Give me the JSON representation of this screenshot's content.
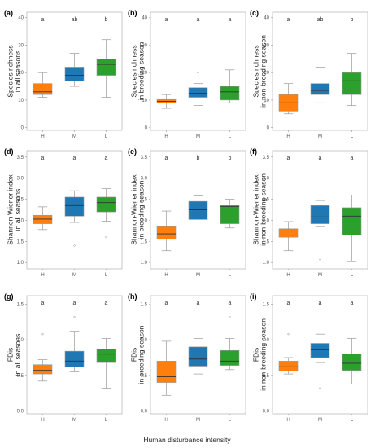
{
  "figure": {
    "x_title": "Human disturbance intensity",
    "colors": {
      "H": "#ff7f0e",
      "M": "#1f77b4",
      "L": "#2ca02c",
      "outline": "#999999",
      "median": "#333333"
    }
  },
  "chart_data": [
    {
      "type": "box",
      "panel": "(a)",
      "ylabel": [
        "Species richness",
        "in all seasons"
      ],
      "ylim": [
        -1,
        42
      ],
      "yticks": [
        0,
        10,
        20,
        30,
        40
      ],
      "categories": [
        "H",
        "M",
        "L"
      ],
      "letters": [
        "a",
        "ab",
        "b"
      ],
      "boxes": [
        {
          "min": 11,
          "q1": 12,
          "median": 13,
          "q3": 16,
          "max": 20,
          "outliers": []
        },
        {
          "min": 15,
          "q1": 17,
          "median": 19,
          "q3": 22,
          "max": 27,
          "outliers": []
        },
        {
          "min": 11,
          "q1": 19,
          "median": 23,
          "q3": 25,
          "max": 32,
          "outliers": []
        }
      ]
    },
    {
      "type": "box",
      "panel": "(b)",
      "ylabel": [
        "Species richness",
        "in breeding season"
      ],
      "ylim": [
        -1,
        42
      ],
      "yticks": [
        0,
        10,
        20,
        30,
        40
      ],
      "categories": [
        "H",
        "M",
        "L"
      ],
      "letters": [
        "a",
        "a",
        "a"
      ],
      "boxes": [
        {
          "min": 7,
          "q1": 9,
          "median": 9.5,
          "q3": 10.5,
          "max": 12,
          "outliers": []
        },
        {
          "min": 8,
          "q1": 11,
          "median": 12.5,
          "q3": 14.5,
          "max": 16,
          "outliers": [
            20
          ]
        },
        {
          "min": 9,
          "q1": 10,
          "median": 13,
          "q3": 15,
          "max": 21,
          "outliers": []
        }
      ]
    },
    {
      "type": "box",
      "panel": "(c)",
      "ylabel": [
        "Species richness",
        "in non-breeding season"
      ],
      "ylim": [
        -1,
        42
      ],
      "yticks": [
        0,
        10,
        20,
        30,
        40
      ],
      "categories": [
        "H",
        "M",
        "L"
      ],
      "letters": [
        "a",
        "ab",
        "b"
      ],
      "boxes": [
        {
          "min": 5,
          "q1": 6,
          "median": 9,
          "q3": 12,
          "max": 16,
          "outliers": []
        },
        {
          "min": 9,
          "q1": 12,
          "median": 13.5,
          "q3": 16,
          "max": 22,
          "outliers": []
        },
        {
          "min": 8,
          "q1": 12,
          "median": 17,
          "q3": 20,
          "max": 27,
          "outliers": []
        }
      ]
    },
    {
      "type": "box",
      "panel": "(d)",
      "ylabel": [
        "Shannon-Wiener index",
        "in all seasons"
      ],
      "ylim": [
        0.85,
        3.65
      ],
      "yticks": [
        1.0,
        1.5,
        2.0,
        2.5,
        3.0,
        3.5
      ],
      "categories": [
        "H",
        "M",
        "L"
      ],
      "letters": [
        "a",
        "a",
        "a"
      ],
      "boxes": [
        {
          "min": 1.78,
          "q1": 1.92,
          "median": 2.03,
          "q3": 2.12,
          "max": 2.32,
          "outliers": []
        },
        {
          "min": 1.95,
          "q1": 2.1,
          "median": 2.35,
          "q3": 2.55,
          "max": 2.7,
          "outliers": [
            1.4
          ]
        },
        {
          "min": 1.98,
          "q1": 2.2,
          "median": 2.42,
          "q3": 2.55,
          "max": 2.75,
          "outliers": [
            1.6
          ]
        }
      ]
    },
    {
      "type": "box",
      "panel": "(e)",
      "ylabel": [
        "Shannon-Wiener index",
        "in breeding season"
      ],
      "ylim": [
        0.85,
        3.65
      ],
      "yticks": [
        1.0,
        1.5,
        2.0,
        2.5,
        3.0,
        3.5
      ],
      "categories": [
        "H",
        "M",
        "L"
      ],
      "letters": [
        "a",
        "b",
        "b"
      ],
      "boxes": [
        {
          "min": 1.28,
          "q1": 1.55,
          "median": 1.68,
          "q3": 1.85,
          "max": 2.22,
          "outliers": []
        },
        {
          "min": 1.65,
          "q1": 2.02,
          "median": 2.25,
          "q3": 2.45,
          "max": 2.58,
          "outliers": []
        },
        {
          "min": 1.82,
          "q1": 1.92,
          "median": 2.33,
          "q3": 2.35,
          "max": 2.5,
          "outliers": []
        }
      ]
    },
    {
      "type": "box",
      "panel": "(f)",
      "ylabel": [
        "Shannon-Wiener index",
        "in non-breeding season"
      ],
      "ylim": [
        0.85,
        3.65
      ],
      "yticks": [
        1.0,
        1.5,
        2.0,
        2.5,
        3.0,
        3.5
      ],
      "categories": [
        "H",
        "M",
        "L"
      ],
      "letters": [
        "a",
        "a",
        "a"
      ],
      "boxes": [
        {
          "min": 1.28,
          "q1": 1.6,
          "median": 1.75,
          "q3": 1.8,
          "max": 1.97,
          "outliers": []
        },
        {
          "min": 1.85,
          "q1": 1.92,
          "median": 2.08,
          "q3": 2.35,
          "max": 2.47,
          "outliers": [
            1.07
          ]
        },
        {
          "min": 1.02,
          "q1": 1.65,
          "median": 2.1,
          "q3": 2.3,
          "max": 2.6,
          "outliers": []
        }
      ]
    },
    {
      "type": "box",
      "panel": "(g)",
      "ylabel": [
        "FDis",
        "in all seasons"
      ],
      "ylim": [
        -0.04,
        1.62
      ],
      "yticks": [
        0.0,
        0.5,
        1.0,
        1.5
      ],
      "categories": [
        "H",
        "M",
        "L"
      ],
      "letters": [
        "a",
        "a",
        "a"
      ],
      "boxes": [
        {
          "min": 0.42,
          "q1": 0.52,
          "median": 0.57,
          "q3": 0.65,
          "max": 0.72,
          "outliers": [
            1.08
          ]
        },
        {
          "min": 0.55,
          "q1": 0.62,
          "median": 0.7,
          "q3": 0.84,
          "max": 1.12,
          "outliers": [
            1.32
          ]
        },
        {
          "min": 0.32,
          "q1": 0.68,
          "median": 0.8,
          "q3": 0.87,
          "max": 1.02,
          "outliers": []
        }
      ]
    },
    {
      "type": "box",
      "panel": "(h)",
      "ylabel": [
        "FDis",
        "in breeding season"
      ],
      "ylim": [
        -0.04,
        1.62
      ],
      "yticks": [
        0.0,
        0.5,
        1.0,
        1.5
      ],
      "categories": [
        "H",
        "M",
        "L"
      ],
      "letters": [
        "a",
        "a",
        "a"
      ],
      "boxes": [
        {
          "min": 0.22,
          "q1": 0.4,
          "median": 0.48,
          "q3": 0.7,
          "max": 0.98,
          "outliers": []
        },
        {
          "min": 0.52,
          "q1": 0.63,
          "median": 0.73,
          "q3": 0.9,
          "max": 1.02,
          "outliers": []
        },
        {
          "min": 0.58,
          "q1": 0.64,
          "median": 0.7,
          "q3": 0.85,
          "max": 1.02,
          "outliers": [
            1.32
          ]
        }
      ]
    },
    {
      "type": "box",
      "panel": "(i)",
      "ylabel": [
        "FDis",
        "in non-breeding season"
      ],
      "ylim": [
        -0.04,
        1.62
      ],
      "yticks": [
        0.0,
        0.5,
        1.0,
        1.5
      ],
      "categories": [
        "H",
        "M",
        "L"
      ],
      "letters": [
        "a",
        "a",
        "a"
      ],
      "boxes": [
        {
          "min": 0.52,
          "q1": 0.56,
          "median": 0.62,
          "q3": 0.7,
          "max": 0.75,
          "outliers": [
            1.08
          ]
        },
        {
          "min": 0.68,
          "q1": 0.75,
          "median": 0.86,
          "q3": 0.95,
          "max": 1.08,
          "outliers": [
            0.32
          ]
        },
        {
          "min": 0.38,
          "q1": 0.57,
          "median": 0.67,
          "q3": 0.8,
          "max": 1.02,
          "outliers": []
        }
      ]
    }
  ]
}
